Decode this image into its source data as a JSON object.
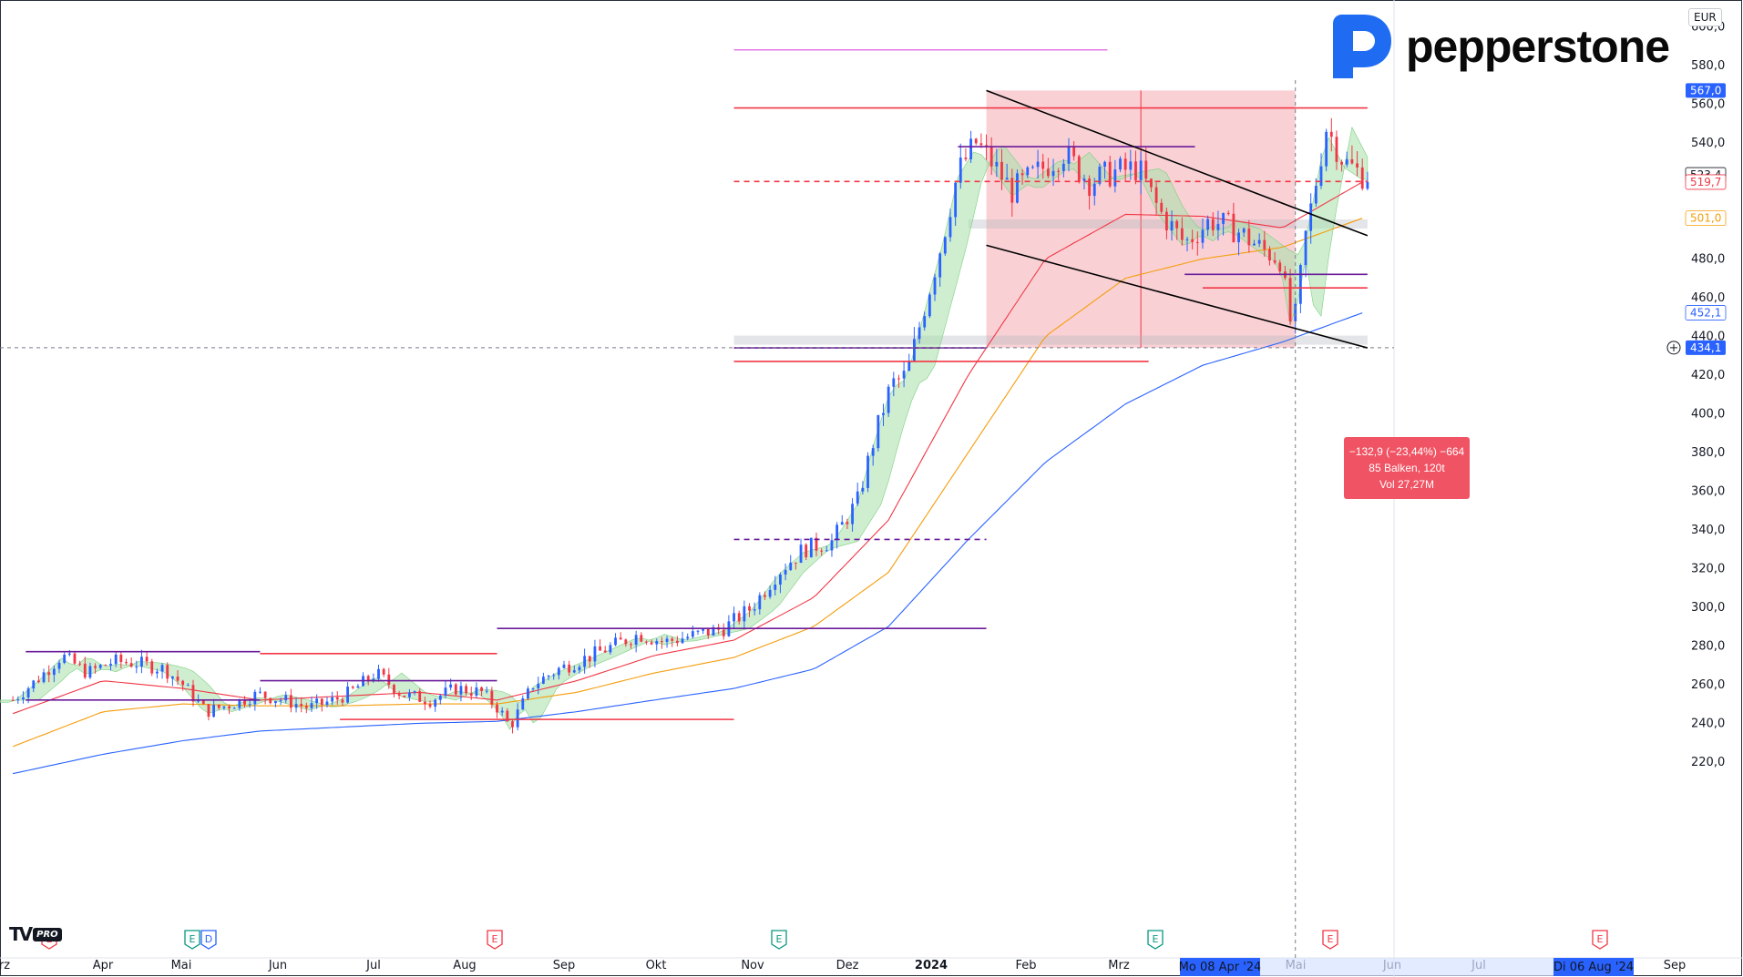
{
  "header": {
    "currency": "EUR",
    "brand": "pepperstone"
  },
  "footer": {
    "platform_mark": "TV",
    "platform_badge": "PRO"
  },
  "measure": {
    "line1": "−132,9 (−23,44%) −664",
    "line2": "85 Balken, 120t",
    "line3": "Vol 27,27M"
  },
  "chart_data": {
    "type": "candlestick",
    "title": "",
    "currency": "EUR",
    "ylim": [
      211,
      610
    ],
    "y_ticks": [
      220,
      240,
      260,
      280,
      300,
      320,
      340,
      360,
      380,
      400,
      420,
      440,
      460,
      480,
      500,
      520,
      540,
      560,
      580,
      600
    ],
    "y_tick_labels": [
      "220,0",
      "240,0",
      "260,0",
      "280,0",
      "300,0",
      "320,0",
      "340,0",
      "360,0",
      "380,0",
      "400,0",
      "420,0",
      "440,0",
      "460,0",
      "480,0",
      "500,0",
      "520,0",
      "540,0",
      "560,0",
      "580,0",
      "600,0"
    ],
    "x_labels": [
      "rz",
      "Apr",
      "Mai",
      "Jun",
      "Jul",
      "Aug",
      "Sep",
      "Okt",
      "Nov",
      "Dez",
      "2024",
      "Feb",
      "Mrz",
      "Mai",
      "Jun",
      "Jul",
      "Sep"
    ],
    "x_highlight_labels": [
      "Mo 08 Apr '24",
      "Di 06 Aug '24"
    ],
    "price_badges": [
      {
        "label": "567,0",
        "value": 567.0,
        "bg": "#2962ff",
        "fg": "#ffffff"
      },
      {
        "label": "523,4",
        "value": 523.4,
        "bg": "#ffffff",
        "fg": "#131722"
      },
      {
        "label": "519,7",
        "value": 519.7,
        "bg": "#ffffff",
        "fg": "#f23645"
      },
      {
        "label": "501,0",
        "value": 501.0,
        "bg": "#ffffff",
        "fg": "#f59d0b"
      },
      {
        "label": "452,1",
        "value": 452.1,
        "bg": "#ffffff",
        "fg": "#2962ff"
      },
      {
        "label": "434,1",
        "value": 434.1,
        "bg": "#2962ff",
        "fg": "#ffffff"
      }
    ],
    "events": [
      {
        "kind": "E",
        "color": "#f23645",
        "x": "rz"
      },
      {
        "kind": "E",
        "color": "#089981",
        "x": "Mai"
      },
      {
        "kind": "D",
        "color": "#2962ff",
        "x": "Mai"
      },
      {
        "kind": "E",
        "color": "#f23645",
        "x": "Aug"
      },
      {
        "kind": "E",
        "color": "#089981",
        "x": "Nov"
      },
      {
        "kind": "E",
        "color": "#089981",
        "x": "Mrz"
      },
      {
        "kind": "E",
        "color": "#f23645",
        "x": "Mai"
      },
      {
        "kind": "E",
        "color": "#f23645",
        "x": "Aug"
      }
    ],
    "series": [
      {
        "name": "",
        "kind": "close",
        "color": "#131722",
        "points": [
          [
            "2023-03-27",
            252
          ],
          [
            "2023-04-05",
            262
          ],
          [
            "2023-04-15",
            275
          ],
          [
            "2023-04-25",
            266
          ],
          [
            "2023-05-05",
            272
          ],
          [
            "2023-05-15",
            271
          ],
          [
            "2023-05-25",
            268
          ],
          [
            "2023-06-01",
            260
          ],
          [
            "2023-06-10",
            246
          ],
          [
            "2023-06-20",
            250
          ],
          [
            "2023-06-30",
            255
          ],
          [
            "2023-07-10",
            252
          ],
          [
            "2023-07-20",
            248
          ],
          [
            "2023-07-30",
            252
          ],
          [
            "2023-08-05",
            256
          ],
          [
            "2023-08-15",
            266
          ],
          [
            "2023-08-25",
            255
          ],
          [
            "2023-09-05",
            252
          ],
          [
            "2023-09-15",
            258
          ],
          [
            "2023-09-25",
            256
          ],
          [
            "2023-10-02",
            247
          ],
          [
            "2023-10-06",
            238
          ],
          [
            "2023-10-15",
            260
          ],
          [
            "2023-10-25",
            268
          ],
          [
            "2023-11-05",
            274
          ],
          [
            "2023-11-15",
            280
          ],
          [
            "2023-11-25",
            286
          ],
          [
            "2023-12-05",
            282
          ],
          [
            "2023-12-15",
            285
          ],
          [
            "2023-12-28",
            289
          ],
          [
            "2024-01-08",
            300
          ],
          [
            "2024-01-18",
            318
          ],
          [
            "2024-01-28",
            330
          ],
          [
            "2024-02-08",
            334
          ],
          [
            "2024-02-18",
            355
          ],
          [
            "2024-02-25",
            390
          ],
          [
            "2024-03-02",
            415
          ],
          [
            "2024-03-08",
            420
          ],
          [
            "2024-03-15",
            455
          ],
          [
            "2024-03-22",
            490
          ],
          [
            "2024-03-28",
            525
          ],
          [
            "2024-04-04",
            540
          ],
          [
            "2024-04-10",
            530
          ],
          [
            "2024-04-18",
            515
          ],
          [
            "2024-04-28",
            525
          ],
          [
            "2024-05-08",
            535
          ],
          [
            "2024-05-18",
            520
          ],
          [
            "2024-05-28",
            525
          ],
          [
            "2024-06-06",
            527
          ],
          [
            "2024-06-14",
            505
          ],
          [
            "2024-06-24",
            488
          ],
          [
            "2024-07-04",
            500
          ],
          [
            "2024-07-14",
            495
          ],
          [
            "2024-07-24",
            485
          ],
          [
            "2024-07-31",
            480
          ],
          [
            "2024-08-05",
            440
          ],
          [
            "2024-08-10",
            492
          ],
          [
            "2024-08-18",
            548
          ],
          [
            "2024-08-25",
            530
          ],
          [
            "2024-09-01",
            523.4
          ]
        ]
      },
      {
        "name": "",
        "kind": "ma_fast",
        "color": "#f23645",
        "points": [
          [
            "2023-03-27",
            245
          ],
          [
            "2023-05-01",
            262
          ],
          [
            "2023-06-01",
            258
          ],
          [
            "2023-07-01",
            252
          ],
          [
            "2023-08-01",
            254
          ],
          [
            "2023-09-01",
            256
          ],
          [
            "2023-10-01",
            252
          ],
          [
            "2023-11-01",
            262
          ],
          [
            "2023-12-01",
            275
          ],
          [
            "2024-01-01",
            283
          ],
          [
            "2024-02-01",
            305
          ],
          [
            "2024-03-01",
            345
          ],
          [
            "2024-04-01",
            420
          ],
          [
            "2024-05-01",
            480
          ],
          [
            "2024-06-01",
            503
          ],
          [
            "2024-07-01",
            502
          ],
          [
            "2024-08-01",
            496
          ],
          [
            "2024-09-01",
            519.7
          ]
        ]
      },
      {
        "name": "",
        "kind": "ma_mid",
        "color": "#f59d0b",
        "points": [
          [
            "2023-03-27",
            228
          ],
          [
            "2023-05-01",
            246
          ],
          [
            "2023-06-01",
            250
          ],
          [
            "2023-07-01",
            249
          ],
          [
            "2023-08-01",
            249
          ],
          [
            "2023-09-01",
            250
          ],
          [
            "2023-10-01",
            250
          ],
          [
            "2023-11-01",
            256
          ],
          [
            "2023-12-01",
            266
          ],
          [
            "2024-01-01",
            274
          ],
          [
            "2024-02-01",
            290
          ],
          [
            "2024-03-01",
            318
          ],
          [
            "2024-04-01",
            380
          ],
          [
            "2024-05-01",
            440
          ],
          [
            "2024-06-01",
            470
          ],
          [
            "2024-07-01",
            480
          ],
          [
            "2024-08-01",
            486
          ],
          [
            "2024-09-01",
            501.0
          ]
        ]
      },
      {
        "name": "",
        "kind": "ma_slow",
        "color": "#2962ff",
        "points": [
          [
            "2023-03-27",
            214
          ],
          [
            "2023-05-01",
            224
          ],
          [
            "2023-06-01",
            231
          ],
          [
            "2023-07-01",
            236
          ],
          [
            "2023-08-01",
            238
          ],
          [
            "2023-09-01",
            240
          ],
          [
            "2023-10-01",
            241
          ],
          [
            "2023-11-01",
            246
          ],
          [
            "2023-12-01",
            252
          ],
          [
            "2024-01-01",
            258
          ],
          [
            "2024-02-01",
            268
          ],
          [
            "2024-03-01",
            290
          ],
          [
            "2024-04-01",
            335
          ],
          [
            "2024-05-01",
            375
          ],
          [
            "2024-06-01",
            405
          ],
          [
            "2024-07-01",
            425
          ],
          [
            "2024-08-01",
            437
          ],
          [
            "2024-09-01",
            452.1
          ]
        ]
      }
    ],
    "annotations": {
      "measure_range": {
        "from_date": "2024-04-08",
        "to_date": "2024-08-06",
        "high": 567.0,
        "low": 434.1
      },
      "channel_upper": [
        [
          "2024-04-08",
          567
        ],
        [
          "2024-09-03",
          492
        ]
      ],
      "channel_lower": [
        [
          "2024-04-08",
          487
        ],
        [
          "2024-09-03",
          434
        ]
      ],
      "horizontal_levels": [
        {
          "value": 588,
          "color": "#e57ae6",
          "from": "2024-01-01",
          "to": "2024-05-25",
          "style": "solid"
        },
        {
          "value": 558,
          "color": "#f23645",
          "from": "2024-01-01",
          "to": "2024-09-03",
          "style": "solid"
        },
        {
          "value": 538,
          "color": "#6a1b9a",
          "from": "2024-03-28",
          "to": "2024-06-28",
          "style": "solid"
        },
        {
          "value": 520,
          "color": "#f23645",
          "from": "2024-01-01",
          "to": "2024-09-03",
          "style": "dashed"
        },
        {
          "value": 498,
          "color": "#9e9e9e",
          "from": "2024-04-01",
          "to": "2024-09-03",
          "style": "band"
        },
        {
          "value": 472,
          "color": "#6a1b9a",
          "from": "2024-06-24",
          "to": "2024-09-03",
          "style": "solid"
        },
        {
          "value": 465,
          "color": "#f23645",
          "from": "2024-07-01",
          "to": "2024-09-03",
          "style": "solid"
        },
        {
          "value": 438,
          "color": "#9e9e9e",
          "from": "2024-01-01",
          "to": "2024-09-03",
          "style": "band"
        },
        {
          "value": 434,
          "color": "#6a1b9a",
          "from": "2024-01-01",
          "to": "2024-04-08",
          "style": "solid"
        },
        {
          "value": 427,
          "color": "#f23645",
          "from": "2024-01-01",
          "to": "2024-06-10",
          "style": "solid"
        },
        {
          "value": 335,
          "color": "#6a1b9a",
          "from": "2024-01-01",
          "to": "2024-04-08",
          "style": "dashed"
        },
        {
          "value": 289,
          "color": "#6a1b9a",
          "from": "2023-10-01",
          "to": "2024-04-08",
          "style": "solid"
        },
        {
          "value": 277,
          "color": "#6a1b9a",
          "from": "2023-04-01",
          "to": "2023-07-01",
          "style": "solid"
        },
        {
          "value": 276,
          "color": "#f23645",
          "from": "2023-07-01",
          "to": "2023-10-01",
          "style": "solid"
        },
        {
          "value": 262,
          "color": "#6a1b9a",
          "from": "2023-07-01",
          "to": "2023-10-01",
          "style": "solid"
        },
        {
          "value": 252,
          "color": "#6a1b9a",
          "from": "2023-04-01",
          "to": "2023-07-01",
          "style": "solid"
        },
        {
          "value": 242,
          "color": "#f23645",
          "from": "2023-08-01",
          "to": "2024-01-01",
          "style": "solid"
        }
      ]
    }
  }
}
